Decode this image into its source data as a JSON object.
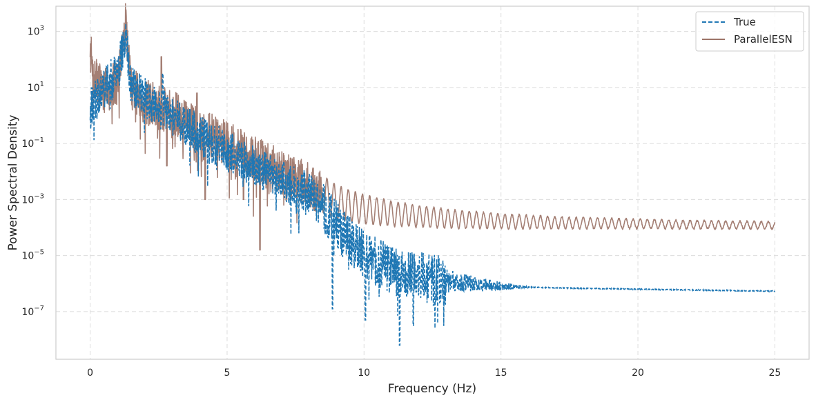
{
  "chart_data": {
    "type": "line",
    "title": "",
    "xlabel": "Frequency (Hz)",
    "ylabel": "Power Spectral Density",
    "xscale": "linear",
    "yscale": "log",
    "xlim": [
      -1.25,
      26.25
    ],
    "ylim_exp": [
      -8.7,
      3.9
    ],
    "xticks": [
      0,
      5,
      10,
      15,
      20,
      25
    ],
    "xtick_labels": [
      "0",
      "5",
      "10",
      "15",
      "20",
      "25"
    ],
    "yticks_exp": [
      -7,
      -5,
      -3,
      -1,
      1,
      3
    ],
    "ytick_labels": [
      {
        "base": "10",
        "exp": "−7"
      },
      {
        "base": "10",
        "exp": "−5"
      },
      {
        "base": "10",
        "exp": "−3"
      },
      {
        "base": "10",
        "exp": "−1"
      },
      {
        "base": "10",
        "exp": "1"
      },
      {
        "base": "10",
        "exp": "3"
      }
    ],
    "grid": true,
    "legend_position": "top-right",
    "series": [
      {
        "name": "True",
        "color": "#1f77b4",
        "style": "dashed",
        "envelope": {
          "f": [
            0,
            0.5,
            1.0,
            1.3,
            1.5,
            2.0,
            3.0,
            4.0,
            5.0,
            6.0,
            7.0,
            8.0,
            8.5,
            9.0,
            9.5,
            10.0,
            11.0,
            12.0,
            13.0,
            14.0,
            15.0,
            16.0,
            18.0,
            20.0,
            22.0,
            25.0
          ],
          "log10_psd": [
            0.2,
            1.0,
            1.5,
            2.8,
            1.0,
            0.6,
            0.0,
            -0.7,
            -1.3,
            -1.8,
            -2.3,
            -2.8,
            -3.3,
            -3.9,
            -4.5,
            -5.0,
            -5.5,
            -5.75,
            -5.9,
            -6.0,
            -6.1,
            -6.13,
            -6.17,
            -6.2,
            -6.23,
            -6.27
          ]
        },
        "peaks": [
          {
            "f": 1.32,
            "log10_psd": 3.0
          },
          {
            "f": 2.65,
            "log10_psd": 1.5
          }
        ],
        "dips": [
          {
            "f": 8.85,
            "log10_psd": -6.9
          },
          {
            "f": 10.05,
            "log10_psd": -7.3
          },
          {
            "f": 11.3,
            "log10_psd": -8.2
          },
          {
            "f": 11.8,
            "log10_psd": -7.5
          }
        ]
      },
      {
        "name": "ParallelESN",
        "color": "#9c7468",
        "style": "solid",
        "envelope": {
          "f": [
            0,
            0.1,
            0.5,
            1.0,
            1.3,
            1.5,
            2.0,
            3.0,
            4.0,
            5.0,
            6.0,
            7.0,
            8.0,
            8.5,
            9.0,
            10.0,
            11.0,
            12.0,
            13.0,
            15.0,
            17.0,
            20.0,
            22.0,
            25.0
          ],
          "log10_psd": [
            2.5,
            1.3,
            1.0,
            1.2,
            3.3,
            1.0,
            0.5,
            0.1,
            -0.5,
            -1.0,
            -1.5,
            -2.0,
            -2.5,
            -2.8,
            -3.1,
            -3.35,
            -3.5,
            -3.6,
            -3.68,
            -3.78,
            -3.83,
            -3.87,
            -3.9,
            -3.92
          ]
        },
        "peaks": [
          {
            "f": 1.3,
            "log10_psd": 3.4
          },
          {
            "f": 2.6,
            "log10_psd": 2.1
          },
          {
            "f": 3.9,
            "log10_psd": 0.8
          }
        ],
        "dips": [
          {
            "f": 2.8,
            "log10_psd": -1.8
          },
          {
            "f": 4.2,
            "log10_psd": -3.0
          },
          {
            "f": 5.6,
            "log10_psd": -3.0
          },
          {
            "f": 6.2,
            "log10_psd": -4.8
          }
        ]
      }
    ]
  }
}
